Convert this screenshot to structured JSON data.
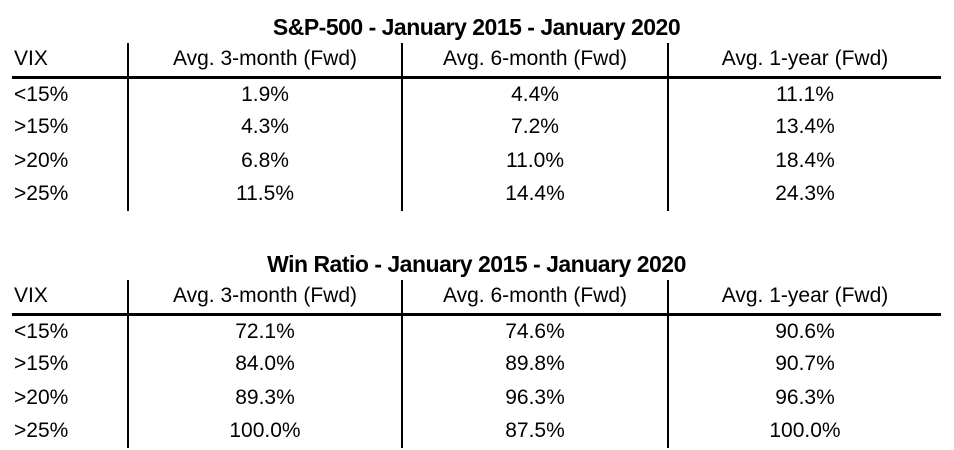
{
  "colors": {
    "background": "#ffffff",
    "text": "#000000",
    "line": "#000000"
  },
  "chart_data": [
    {
      "type": "table",
      "title": "S&P-500 - January 2015 - January 2020",
      "columns": [
        "VIX",
        "Avg. 3-month (Fwd)",
        "Avg. 6-month (Fwd)",
        "Avg. 1-year (Fwd)"
      ],
      "rows": [
        [
          "<15%",
          "1.9%",
          "4.4%",
          "11.1%"
        ],
        [
          ">15%",
          "4.3%",
          "7.2%",
          "13.4%"
        ],
        [
          ">20%",
          "6.8%",
          "11.0%",
          "18.4%"
        ],
        [
          ">25%",
          "11.5%",
          "14.4%",
          "24.3%"
        ]
      ],
      "layout": {
        "grid": "off",
        "header_rule": "thick",
        "column_dividers": "on"
      }
    },
    {
      "type": "table",
      "title": "Win Ratio - January 2015 - January 2020",
      "columns": [
        "VIX",
        "Avg. 3-month (Fwd)",
        "Avg. 6-month (Fwd)",
        "Avg. 1-year (Fwd)"
      ],
      "rows": [
        [
          "<15%",
          "72.1%",
          "74.6%",
          "90.6%"
        ],
        [
          ">15%",
          "84.0%",
          "89.8%",
          "90.7%"
        ],
        [
          ">20%",
          "89.3%",
          "96.3%",
          "96.3%"
        ],
        [
          ">25%",
          "100.0%",
          "87.5%",
          "100.0%"
        ]
      ],
      "layout": {
        "grid": "off",
        "header_rule": "thick",
        "column_dividers": "on"
      }
    }
  ]
}
